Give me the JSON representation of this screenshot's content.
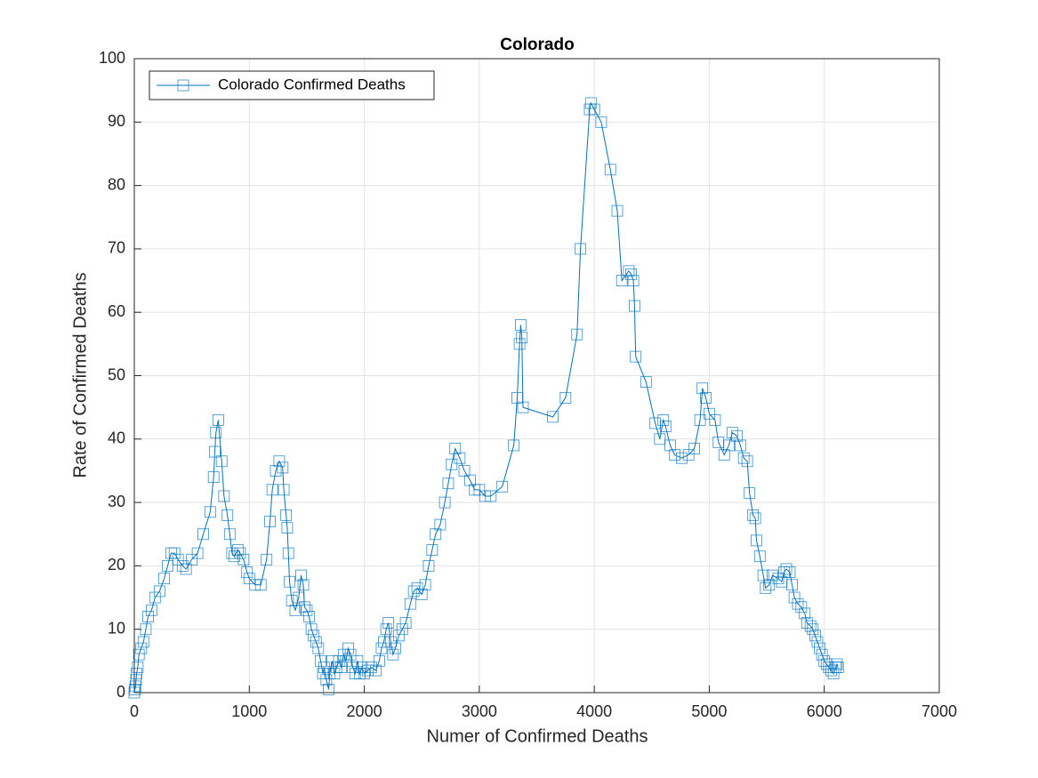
{
  "chart_data": {
    "type": "line",
    "title": "Colorado",
    "xlabel": "Numer of Confirmed Deaths",
    "ylabel": "Rate of Confirmed Deaths",
    "x": [
      0,
      5,
      10,
      15,
      20,
      30,
      40,
      60,
      80,
      100,
      120,
      150,
      180,
      220,
      260,
      290,
      320,
      350,
      380,
      420,
      450,
      500,
      550,
      600,
      660,
      690,
      700,
      710,
      730,
      760,
      780,
      810,
      830,
      850,
      870,
      900,
      920,
      950,
      980,
      1000,
      1050,
      1100,
      1150,
      1180,
      1200,
      1230,
      1260,
      1290,
      1300,
      1320,
      1330,
      1340,
      1350,
      1370,
      1400,
      1430,
      1450,
      1470,
      1480,
      1500,
      1520,
      1540,
      1560,
      1580,
      1600,
      1620,
      1640,
      1650,
      1670,
      1690,
      1700,
      1720,
      1740,
      1760,
      1780,
      1800,
      1820,
      1840,
      1860,
      1880,
      1900,
      1920,
      1940,
      1960,
      1980,
      2000,
      2030,
      2060,
      2100,
      2130,
      2150,
      2170,
      2190,
      2210,
      2230,
      2250,
      2270,
      2300,
      2330,
      2360,
      2400,
      2430,
      2460,
      2500,
      2530,
      2560,
      2590,
      2620,
      2660,
      2700,
      2730,
      2760,
      2790,
      2830,
      2870,
      2920,
      2960,
      3000,
      3050,
      3100,
      3200,
      3300,
      3330,
      3350,
      3360,
      3370,
      3380,
      3640,
      3750,
      3850,
      3880,
      3960,
      3970,
      4000,
      4060,
      4140,
      4200,
      4240,
      4300,
      4320,
      4340,
      4350,
      4360,
      4450,
      4530,
      4570,
      4600,
      4620,
      4660,
      4700,
      4760,
      4820,
      4870,
      4920,
      4940,
      4970,
      5000,
      5050,
      5080,
      5130,
      5170,
      5200,
      5240,
      5270,
      5300,
      5330,
      5350,
      5380,
      5400,
      5410,
      5440,
      5470,
      5490,
      5520,
      5550,
      5600,
      5630,
      5650,
      5670,
      5700,
      5720,
      5740,
      5770,
      5800,
      5830,
      5850,
      5880,
      5900,
      5920,
      5940,
      5960,
      5980,
      6000,
      6020,
      6040,
      6060,
      6080,
      6100,
      6110,
      6120
    ],
    "series": [
      {
        "name": "Colorado Confirmed Deaths",
        "color": "#0072bd",
        "marker": "square",
        "values": [
          0,
          0.5,
          1,
          2,
          3,
          4,
          6,
          7,
          8,
          10,
          12,
          13,
          15,
          16,
          18,
          20,
          22,
          22,
          21,
          20,
          19.5,
          21,
          22,
          25,
          28.5,
          34,
          38,
          41,
          43,
          36.5,
          31,
          28,
          25,
          22,
          21.5,
          22.5,
          22,
          21,
          19,
          18,
          17,
          17,
          21,
          27,
          32,
          35,
          36.5,
          35.5,
          32,
          28,
          26,
          22,
          17.5,
          14.5,
          13,
          15,
          18.5,
          17,
          13.5,
          13,
          12,
          10,
          9,
          8,
          7,
          5,
          3,
          4,
          2,
          0.5,
          3,
          5,
          3,
          4,
          5,
          4,
          6,
          5,
          7,
          6,
          4,
          3,
          5,
          3,
          4,
          3,
          3.5,
          4,
          3.5,
          5,
          7,
          8,
          10,
          11,
          8,
          6,
          7,
          9,
          10,
          11,
          14,
          16,
          16.5,
          15.5,
          17,
          20,
          22.5,
          25,
          26.5,
          30,
          33,
          36,
          38.5,
          37,
          35,
          33.5,
          32,
          32,
          31,
          31,
          32.5,
          39,
          46.5,
          55,
          58,
          56,
          45,
          43.5,
          46.5,
          56.5,
          70,
          92,
          93,
          92,
          90,
          82.5,
          76,
          65,
          66.5,
          66,
          65,
          61,
          53,
          49,
          42.5,
          40,
          43,
          42,
          39,
          37.5,
          37,
          37.5,
          38.5,
          43,
          48,
          46.5,
          44,
          43,
          39.5,
          37.5,
          39,
          41,
          40.5,
          39,
          37,
          36.5,
          31.5,
          28,
          27.5,
          24,
          21.5,
          18.5,
          16.5,
          17,
          18.5,
          18,
          17.5,
          19,
          19.5,
          19,
          17,
          15,
          14,
          13.5,
          12.5,
          11,
          10.5,
          10,
          9,
          8,
          7,
          6,
          5,
          4.5,
          4,
          3.5,
          3,
          4,
          4.5,
          4
        ]
      }
    ],
    "xlim": [
      0,
      7000
    ],
    "ylim": [
      0,
      100
    ],
    "xticks": [
      0,
      1000,
      2000,
      3000,
      4000,
      5000,
      6000,
      7000
    ],
    "yticks": [
      0,
      10,
      20,
      30,
      40,
      50,
      60,
      70,
      80,
      90,
      100
    ],
    "grid": true,
    "legend": "upper left"
  }
}
